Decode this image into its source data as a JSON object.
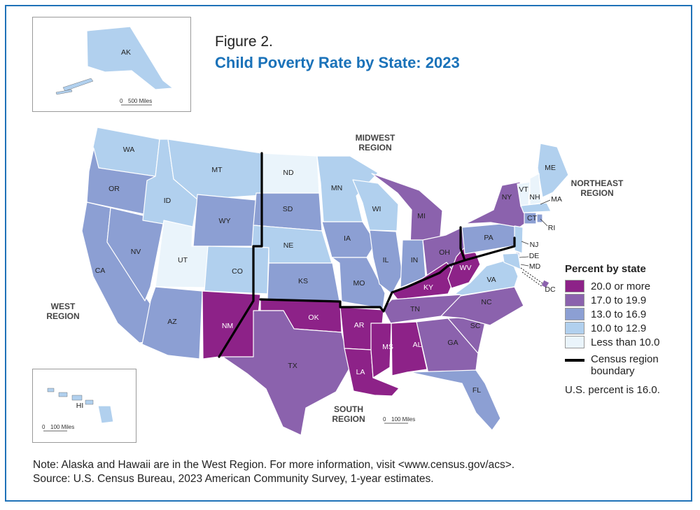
{
  "header": {
    "figure_label": "Figure 2.",
    "title": "Child Poverty Rate by State: 2023"
  },
  "colors": {
    "20_plus": "#8d2288",
    "17_to_19_9": "#8b62ad",
    "13_to_16_9": "#8c9fd3",
    "10_to_12_9": "#b1d0ee",
    "lt_10": "#eaf4fb",
    "boundary": "#000000",
    "frame": "#1f72b8",
    "title": "#1a72b9"
  },
  "legend": {
    "title": "Percent by state",
    "items": [
      {
        "label": "20.0 or more",
        "key": "20_plus"
      },
      {
        "label": "17.0 to 19.9",
        "key": "17_to_19_9"
      },
      {
        "label": "13.0 to 16.9",
        "key": "13_to_16_9"
      },
      {
        "label": "10.0 to 12.9",
        "key": "10_to_12_9"
      },
      {
        "label": "Less than 10.0",
        "key": "lt_10"
      }
    ],
    "boundary_label_1": "Census region",
    "boundary_label_2": "boundary",
    "us_percent": "U.S. percent is 16.0."
  },
  "regions": {
    "west": [
      "WEST",
      "REGION"
    ],
    "midwest": [
      "MIDWEST",
      "REGION"
    ],
    "northeast": [
      "NORTHEAST",
      "REGION"
    ],
    "south": [
      "SOUTH",
      "REGION"
    ]
  },
  "scale_bars": {
    "alaska": {
      "zero": "0",
      "label": "500 Miles"
    },
    "hawaii": {
      "zero": "0",
      "label": "100 Miles"
    },
    "main": {
      "zero": "0",
      "label": "100 Miles"
    }
  },
  "states": {
    "WA": "10_to_12_9",
    "OR": "13_to_16_9",
    "CA": "13_to_16_9",
    "NV": "13_to_16_9",
    "ID": "10_to_12_9",
    "MT": "10_to_12_9",
    "WY": "13_to_16_9",
    "UT": "lt_10",
    "CO": "10_to_12_9",
    "AZ": "13_to_16_9",
    "NM": "20_plus",
    "ND": "lt_10",
    "SD": "13_to_16_9",
    "NE": "10_to_12_9",
    "KS": "13_to_16_9",
    "MN": "10_to_12_9",
    "IA": "13_to_16_9",
    "MO": "13_to_16_9",
    "WI": "10_to_12_9",
    "IL": "13_to_16_9",
    "MI": "17_to_19_9",
    "IN": "13_to_16_9",
    "OH": "17_to_19_9",
    "KY": "20_plus",
    "WV": "20_plus",
    "TN": "17_to_19_9",
    "OK": "20_plus",
    "TX": "17_to_19_9",
    "AR": "20_plus",
    "LA": "20_plus",
    "MS": "20_plus",
    "AL": "20_plus",
    "GA": "17_to_19_9",
    "FL": "13_to_16_9",
    "SC": "17_to_19_9",
    "NC": "17_to_19_9",
    "VA": "10_to_12_9",
    "PA": "13_to_16_9",
    "NY": "17_to_19_9",
    "ME": "10_to_12_9",
    "VT": "lt_10",
    "NH": "lt_10",
    "MA": "10_to_12_9",
    "CT": "13_to_16_9",
    "RI": "13_to_16_9",
    "NJ": "10_to_12_9",
    "DE": "13_to_16_9",
    "MD": "10_to_12_9",
    "DC": "17_to_19_9",
    "AK": "10_to_12_9",
    "HI": "10_to_12_9"
  },
  "footer": {
    "note": "Note: Alaska and Hawaii are in the West Region. For more information, visit <www.census.gov/acs>.",
    "source": "Source: U.S. Census Bureau, 2023 American Community Survey, 1-year estimates."
  }
}
